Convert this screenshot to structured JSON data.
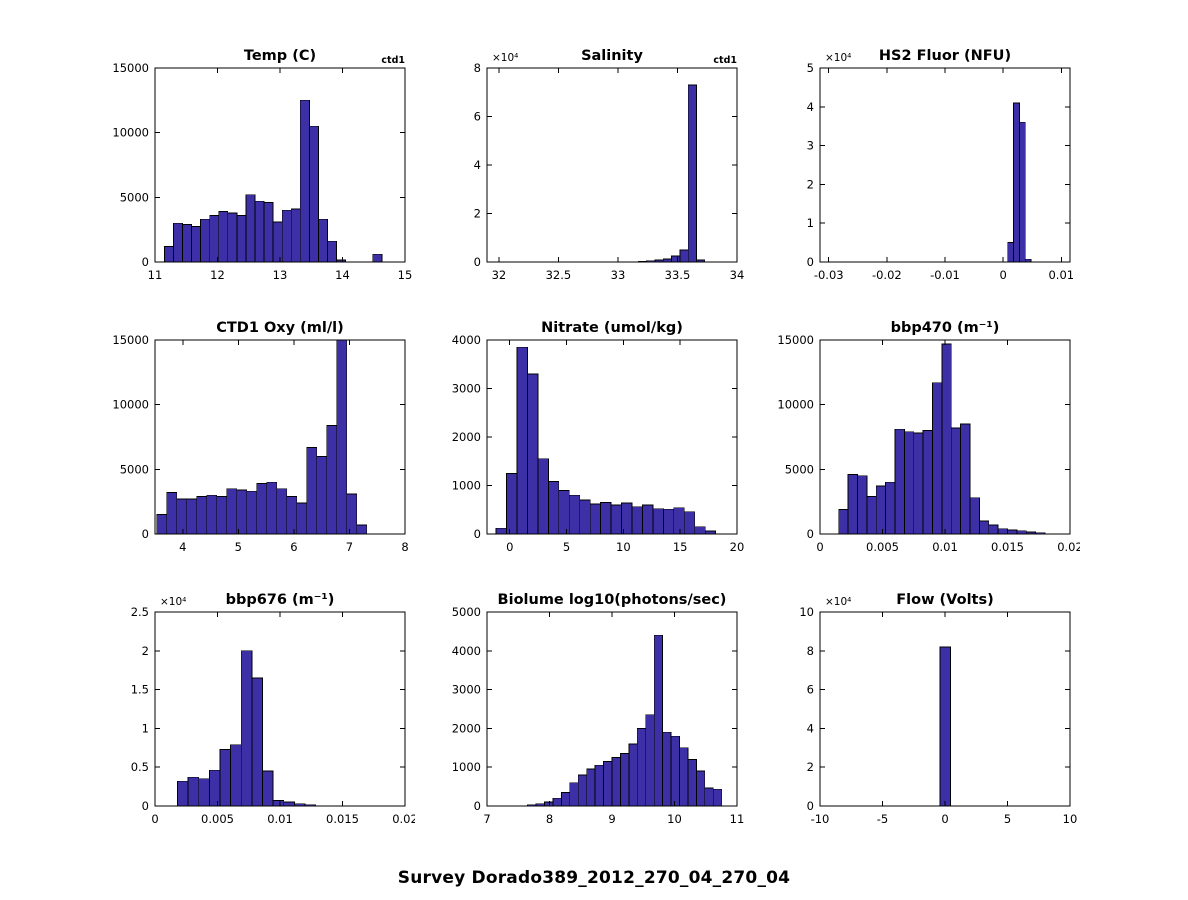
{
  "figure": {
    "title": "Survey Dorado389_2012_270_04_270_04",
    "bar_color": "#3d2fa6",
    "bar_edge_color": "#000000"
  },
  "chart_data": [
    {
      "type": "bar",
      "title": "Temp (C)",
      "corner_label": "ctd1",
      "exp_label": "",
      "xlim": [
        11,
        15
      ],
      "ylim": [
        0,
        15000
      ],
      "x_ticks": [
        "11",
        "12",
        "13",
        "14",
        "15"
      ],
      "y_ticks": [
        "0",
        "5000",
        "10000",
        "15000"
      ],
      "y_tick_scale": 1,
      "bin_start": 11.15,
      "bin_width": 0.145,
      "counts": [
        1200,
        3000,
        2900,
        2750,
        3300,
        3600,
        3900,
        3800,
        3600,
        5200,
        4700,
        4600,
        3100,
        4000,
        4100,
        12500,
        10500,
        3300,
        1600,
        150,
        0,
        0,
        0,
        600
      ]
    },
    {
      "type": "bar",
      "title": "Salinity",
      "corner_label": "ctd1",
      "exp_label": "×10⁴",
      "xlim": [
        31.9,
        34
      ],
      "ylim": [
        0,
        80000
      ],
      "x_ticks": [
        "32",
        "32.5",
        "33",
        "33.5",
        "34"
      ],
      "y_ticks": [
        "0",
        "2",
        "4",
        "6",
        "8"
      ],
      "y_tick_scale": 10000,
      "bin_start": 33.17,
      "bin_width": 0.07,
      "counts": [
        300,
        500,
        800,
        1300,
        2500,
        5000,
        73000,
        800
      ]
    },
    {
      "type": "bar",
      "title": "HS2 Fluor (NFU)",
      "corner_label": "",
      "exp_label": "×10⁴",
      "xlim": [
        -0.0315,
        0.0115
      ],
      "ylim": [
        0,
        50000
      ],
      "x_ticks": [
        "-0.03",
        "-0.02",
        "-0.01",
        "0",
        "0.01"
      ],
      "y_ticks": [
        "0",
        "1",
        "2",
        "3",
        "4",
        "5"
      ],
      "y_tick_scale": 10000,
      "bin_start": 0.0008,
      "bin_width": 0.001,
      "counts": [
        5000,
        41000,
        36000,
        700
      ]
    },
    {
      "type": "bar",
      "title": "CTD1 Oxy (ml/l)",
      "corner_label": "",
      "exp_label": "",
      "xlim": [
        3.5,
        8
      ],
      "ylim": [
        0,
        15000
      ],
      "x_ticks": [
        "4",
        "5",
        "6",
        "7",
        "8"
      ],
      "y_ticks": [
        "0",
        "5000",
        "10000",
        "15000"
      ],
      "y_tick_scale": 1,
      "bin_start": 3.53,
      "bin_width": 0.18,
      "counts": [
        1500,
        3200,
        2700,
        2700,
        2900,
        3000,
        2900,
        3500,
        3400,
        3300,
        3900,
        4000,
        3500,
        2900,
        2400,
        6700,
        6000,
        8400,
        15500,
        3100,
        700
      ]
    },
    {
      "type": "bar",
      "title": "Nitrate (umol/kg)",
      "corner_label": "",
      "exp_label": "",
      "xlim": [
        -2,
        20
      ],
      "ylim": [
        0,
        4000
      ],
      "x_ticks": [
        "0",
        "5",
        "10",
        "15",
        "20"
      ],
      "y_ticks": [
        "0",
        "1000",
        "2000",
        "3000",
        "4000"
      ],
      "y_tick_scale": 1,
      "bin_start": -1.2,
      "bin_width": 0.92,
      "counts": [
        120,
        1250,
        3850,
        3300,
        1550,
        1080,
        900,
        800,
        700,
        620,
        650,
        600,
        640,
        560,
        600,
        520,
        510,
        540,
        460,
        150,
        60
      ]
    },
    {
      "type": "bar",
      "title": "bbp470 (m⁻¹)",
      "corner_label": "",
      "exp_label": "",
      "xlim": [
        0,
        0.02
      ],
      "ylim": [
        0,
        15000
      ],
      "x_ticks": [
        "0",
        "0.005",
        "0.01",
        "0.015",
        "0.02"
      ],
      "y_ticks": [
        "0",
        "5000",
        "10000",
        "15000"
      ],
      "y_tick_scale": 1,
      "bin_start": 0.0015,
      "bin_width": 0.00075,
      "counts": [
        1900,
        4600,
        4500,
        2900,
        3700,
        4000,
        8100,
        7900,
        7800,
        8000,
        11700,
        14700,
        8200,
        8500,
        2800,
        1000,
        700,
        400,
        300,
        250,
        150,
        100
      ]
    },
    {
      "type": "bar",
      "title": "bbp676 (m⁻¹)",
      "corner_label": "",
      "exp_label": "×10⁴",
      "xlim": [
        0,
        0.02
      ],
      "ylim": [
        0,
        25000
      ],
      "x_ticks": [
        "0",
        "0.005",
        "0.01",
        "0.015",
        "0.02"
      ],
      "y_ticks": [
        "0",
        "0.5",
        "1",
        "1.5",
        "2",
        "2.5"
      ],
      "y_tick_scale": 10000,
      "bin_start": 0.0018,
      "bin_width": 0.00085,
      "counts": [
        3200,
        3700,
        3500,
        4600,
        7300,
        7900,
        20000,
        16500,
        4500,
        700,
        500,
        300,
        150
      ]
    },
    {
      "type": "bar",
      "title": "Biolume log10(photons/sec)",
      "corner_label": "",
      "exp_label": "",
      "xlim": [
        7,
        11
      ],
      "ylim": [
        0,
        5000
      ],
      "x_ticks": [
        "7",
        "8",
        "9",
        "10",
        "11"
      ],
      "y_ticks": [
        "0",
        "1000",
        "2000",
        "3000",
        "4000",
        "5000"
      ],
      "y_tick_scale": 1,
      "bin_start": 7.65,
      "bin_width": 0.135,
      "counts": [
        30,
        60,
        100,
        200,
        350,
        600,
        800,
        950,
        1050,
        1150,
        1250,
        1350,
        1600,
        2000,
        2350,
        4400,
        1900,
        1800,
        1500,
        1200,
        900,
        460,
        430
      ]
    },
    {
      "type": "bar",
      "title": "Flow (Volts)",
      "corner_label": "",
      "exp_label": "×10⁴",
      "xlim": [
        -10,
        10
      ],
      "ylim": [
        0,
        100000
      ],
      "x_ticks": [
        "-10",
        "-5",
        "0",
        "5",
        "10"
      ],
      "y_ticks": [
        "0",
        "2",
        "4",
        "6",
        "8",
        "10"
      ],
      "y_tick_scale": 10000,
      "bin_start": -0.4,
      "bin_width": 0.85,
      "counts": [
        82000
      ]
    }
  ]
}
